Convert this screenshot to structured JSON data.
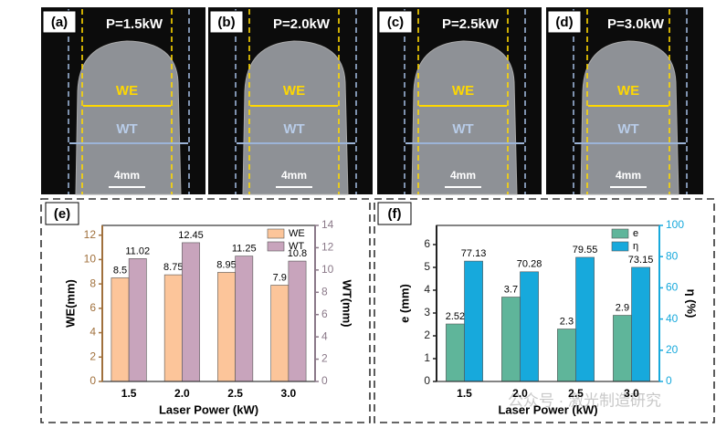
{
  "panels": [
    {
      "label": "(a)",
      "power": "P=1.5kW",
      "we": "WE",
      "wt": "WT",
      "scale": "4mm"
    },
    {
      "label": "(b)",
      "power": "P=2.0kW",
      "we": "WE",
      "wt": "WT",
      "scale": "4mm"
    },
    {
      "label": "(c)",
      "power": "P=2.5kW",
      "we": "WE",
      "wt": "WT",
      "scale": "4mm"
    },
    {
      "label": "(d)",
      "power": "P=3.0kW",
      "we": "WE",
      "wt": "WT",
      "scale": "4mm"
    }
  ],
  "watermark": "公众号 · 激光制造研究",
  "chart_data": [
    {
      "type": "bar",
      "panel_label": "(e)",
      "xlabel": "Laser Power (kW)",
      "ylabel": "WE(mm)",
      "y2label": "WT(mm)",
      "categories": [
        "1.5",
        "2.0",
        "2.5",
        "3.0"
      ],
      "series": [
        {
          "name": "WE",
          "color": "#fcc59a",
          "values": [
            8.5,
            8.75,
            8.95,
            7.9
          ],
          "axis": "y"
        },
        {
          "name": "WT",
          "color": "#c8a4bc",
          "values": [
            11.02,
            12.45,
            11.25,
            10.8
          ],
          "axis": "y2"
        }
      ],
      "ylim": [
        0,
        12.8
      ],
      "yticks": [
        0,
        2,
        4,
        6,
        8,
        10,
        12
      ],
      "y2lim": [
        0,
        14
      ],
      "y2ticks": [
        0,
        2,
        4,
        6,
        8,
        10,
        12,
        14
      ],
      "y_color": "#a0703c",
      "y2_color": "#8a7888",
      "legend": "upper right"
    },
    {
      "type": "bar",
      "panel_label": "(f)",
      "xlabel": "Laser Power (kW)",
      "ylabel": "e (mm)",
      "y2label": "η (%)",
      "categories": [
        "1.5",
        "2.0",
        "2.5",
        "3.0"
      ],
      "series": [
        {
          "name": "e",
          "color": "#5fb59a",
          "values": [
            2.52,
            3.7,
            2.3,
            2.9
          ],
          "axis": "y"
        },
        {
          "name": "η",
          "color": "#17a9dc",
          "values": [
            77.13,
            70.28,
            79.55,
            73.15
          ],
          "axis": "y2"
        }
      ],
      "ylim": [
        0,
        6.84
      ],
      "yticks": [
        0,
        1,
        2,
        3,
        4,
        5,
        6
      ],
      "y2lim": [
        0,
        100
      ],
      "y2ticks": [
        0,
        20,
        40,
        60,
        80,
        100
      ],
      "y_color": "#222222",
      "y2_color": "#17a9dc",
      "legend": "upper right"
    }
  ]
}
